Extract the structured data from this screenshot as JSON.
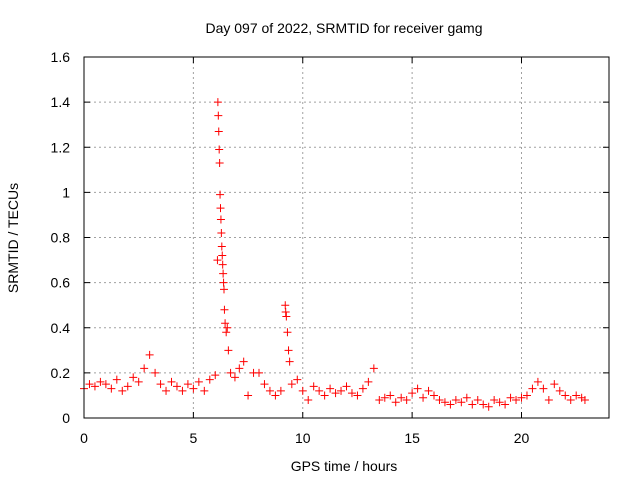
{
  "chart_data": {
    "type": "scatter",
    "title": "Day 097 of 2022, SRMTID for receiver gamg",
    "xlabel": "GPS time / hours",
    "ylabel": "SRMTID / TECUs",
    "xlim": [
      0,
      24
    ],
    "ylim": [
      0,
      1.6
    ],
    "xticks": [
      0,
      5,
      10,
      15,
      20
    ],
    "xtick_labels": [
      "0",
      "5",
      "10",
      "15",
      "20"
    ],
    "yticks": [
      0,
      0.2,
      0.4,
      0.6,
      0.8,
      1,
      1.2,
      1.4,
      1.6
    ],
    "ytick_labels": [
      "0",
      "0.2",
      "0.4",
      "0.6",
      "0.8",
      "1",
      "1.2",
      "1.4",
      "1.6"
    ],
    "grid": true,
    "marker": "+",
    "series": [
      {
        "name": "SRMTID",
        "color": "#ff0000",
        "x": [
          0,
          0.25,
          0.5,
          0.75,
          1,
          1.25,
          1.5,
          1.75,
          2,
          2.25,
          2.5,
          2.75,
          3,
          3.25,
          3.5,
          3.75,
          4,
          4.25,
          4.5,
          4.75,
          5,
          5.25,
          5.5,
          5.75,
          6.0,
          6.1,
          6.12,
          6.14,
          6.16,
          6.18,
          6.2,
          6.22,
          6.24,
          6.26,
          6.28,
          6.3,
          6.32,
          6.34,
          6.36,
          6.38,
          6.4,
          6.42,
          6.45,
          6.5,
          6.55,
          6.6,
          6.7,
          6.9,
          7.1,
          7.3,
          7.5,
          7.75,
          8,
          8.25,
          8.5,
          8.75,
          9,
          9.2,
          9.22,
          9.25,
          9.3,
          9.35,
          9.4,
          9.5,
          9.75,
          10,
          10.25,
          10.5,
          10.75,
          11,
          11.25,
          11.5,
          11.75,
          12,
          12.25,
          12.5,
          12.75,
          13,
          13.25,
          13.5,
          13.75,
          14,
          14.25,
          14.5,
          14.75,
          15,
          15.25,
          15.5,
          15.75,
          16,
          16.25,
          16.5,
          16.75,
          17,
          17.25,
          17.5,
          17.75,
          18,
          18.25,
          18.5,
          18.75,
          19,
          19.25,
          19.5,
          19.75,
          20,
          20.25,
          20.5,
          20.75,
          21,
          21.25,
          21.5,
          21.75,
          22,
          22.25,
          22.5,
          22.75,
          22.9
        ],
        "y": [
          0.13,
          0.15,
          0.14,
          0.16,
          0.15,
          0.13,
          0.17,
          0.12,
          0.14,
          0.18,
          0.16,
          0.22,
          0.28,
          0.2,
          0.15,
          0.12,
          0.16,
          0.14,
          0.12,
          0.15,
          0.13,
          0.16,
          0.12,
          0.17,
          0.19,
          0.7,
          1.4,
          1.34,
          1.27,
          1.19,
          1.13,
          0.99,
          0.93,
          0.88,
          0.82,
          0.76,
          0.72,
          0.68,
          0.64,
          0.6,
          0.57,
          0.48,
          0.42,
          0.38,
          0.4,
          0.3,
          0.2,
          0.18,
          0.22,
          0.25,
          0.1,
          0.2,
          0.2,
          0.15,
          0.12,
          0.1,
          0.12,
          0.5,
          0.47,
          0.45,
          0.38,
          0.3,
          0.25,
          0.15,
          0.17,
          0.12,
          0.08,
          0.14,
          0.12,
          0.1,
          0.13,
          0.11,
          0.12,
          0.14,
          0.11,
          0.1,
          0.13,
          0.16,
          0.22,
          0.08,
          0.09,
          0.1,
          0.07,
          0.09,
          0.08,
          0.11,
          0.13,
          0.09,
          0.12,
          0.1,
          0.08,
          0.07,
          0.06,
          0.08,
          0.07,
          0.09,
          0.06,
          0.08,
          0.06,
          0.05,
          0.08,
          0.07,
          0.06,
          0.09,
          0.08,
          0.09,
          0.1,
          0.13,
          0.16,
          0.13,
          0.08,
          0.15,
          0.12,
          0.1,
          0.08,
          0.1,
          0.09,
          0.08
        ]
      }
    ]
  }
}
